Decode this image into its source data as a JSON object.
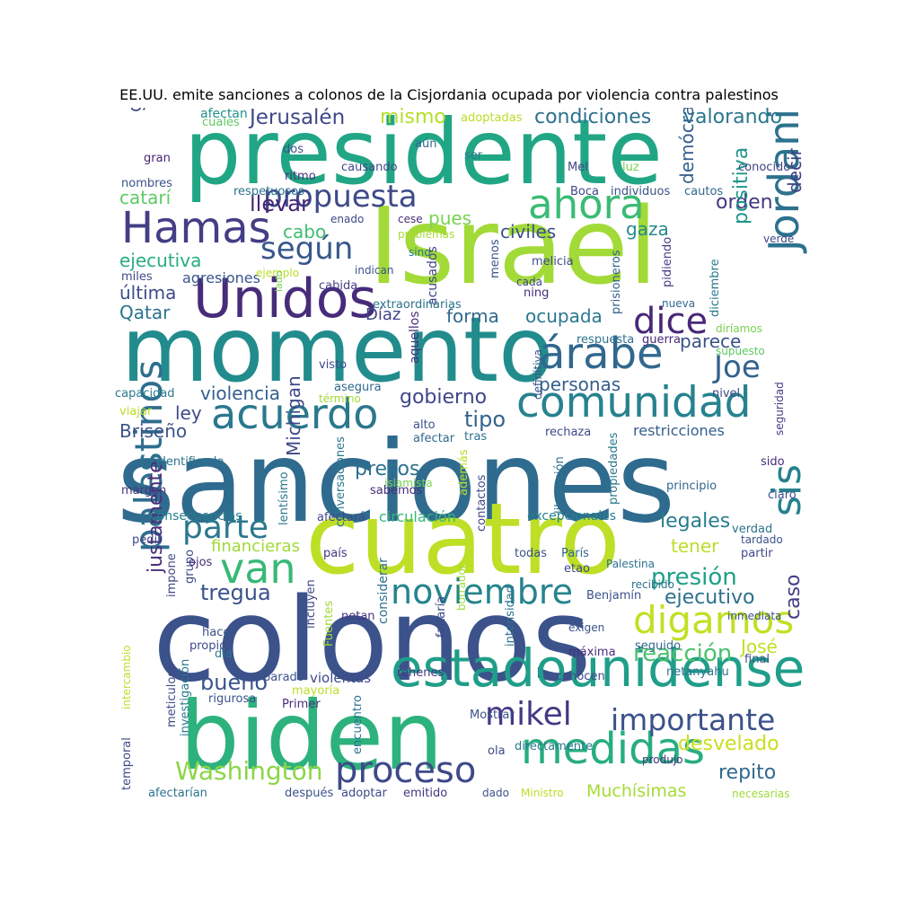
{
  "title": "EE.UU. emite sanciones a colonos de la Cisjordania ocupada por violencia contra palestinos",
  "words": [
    {
      "text": "sanciones",
      "color": "#2f6b8e"
    },
    {
      "text": "colonos",
      "color": "#3b528b"
    },
    {
      "text": "presidente",
      "color": "#21a685"
    },
    {
      "text": "momento",
      "color": "#228c8d"
    },
    {
      "text": "Israel",
      "color": "#a2da37"
    },
    {
      "text": "cuatro",
      "color": "#bddf26"
    },
    {
      "text": "biden",
      "color": "#2db27d"
    },
    {
      "text": "Unidos",
      "color": "#472c7a"
    },
    {
      "text": "Hamas",
      "color": "#433e85"
    },
    {
      "text": "estadounidense",
      "color": "#1f9e89"
    },
    {
      "text": "acuerdo",
      "color": "#2a788e"
    },
    {
      "text": "comunidad",
      "color": "#26828e"
    },
    {
      "text": "medidas",
      "color": "#27ad81"
    },
    {
      "text": "ahora",
      "color": "#3bbb75"
    },
    {
      "text": "árabe",
      "color": "#31688e"
    },
    {
      "text": "propuesta",
      "color": "#3e4a89"
    },
    {
      "text": "Jordania",
      "color": "#2c728e"
    },
    {
      "text": "noviembre",
      "color": "#25848e"
    },
    {
      "text": "digamos",
      "color": "#c2df23"
    },
    {
      "text": "proceso",
      "color": "#3e4989"
    },
    {
      "text": "dice",
      "color": "#482878"
    },
    {
      "text": "según",
      "color": "#38588c"
    },
    {
      "text": "parte",
      "color": "#2a788e"
    },
    {
      "text": "van",
      "color": "#38b977"
    },
    {
      "text": "mikel",
      "color": "#443983"
    },
    {
      "text": "Joe",
      "color": "#33638d"
    },
    {
      "text": "palestinos",
      "color": "#2e6e8e"
    },
    {
      "text": "importante",
      "color": "#3b528b"
    },
    {
      "text": "Washington",
      "color": "#8bd646"
    },
    {
      "text": "sis",
      "color": "#26818e"
    },
    {
      "text": "presión",
      "color": "#1fa088"
    },
    {
      "text": "reacción",
      "color": "#4ac16d"
    },
    {
      "text": "repito",
      "color": "#31688e"
    },
    {
      "text": "desvelado",
      "color": "#c8e020"
    },
    {
      "text": "Muchísimas",
      "color": "#a5db36"
    },
    {
      "text": "ejecutivo",
      "color": "#2d708e"
    },
    {
      "text": "legales",
      "color": "#287d8e"
    },
    {
      "text": "tener",
      "color": "#bade28"
    },
    {
      "text": "tregua",
      "color": "#3b528b"
    },
    {
      "text": "bueno",
      "color": "#3a548c"
    },
    {
      "text": "violencia",
      "color": "#355f8d"
    },
    {
      "text": "gobierno",
      "color": "#3f4788"
    },
    {
      "text": "ley",
      "color": "#3e4a89"
    },
    {
      "text": "tipo",
      "color": "#33638d"
    },
    {
      "text": "personas",
      "color": "#355e8d"
    },
    {
      "text": "forma",
      "color": "#31688e"
    },
    {
      "text": "ocupada",
      "color": "#2a788e"
    },
    {
      "text": "parece",
      "color": "#3b528b"
    },
    {
      "text": "condiciones",
      "color": "#2d708e"
    },
    {
      "text": "valorando",
      "color": "#2a768e"
    },
    {
      "text": "Jerusalén",
      "color": "#3f4889"
    },
    {
      "text": "mismo",
      "color": "#b5de2b"
    },
    {
      "text": "llevar",
      "color": "#482475"
    },
    {
      "text": "pues",
      "color": "#7ad151"
    },
    {
      "text": "cabo",
      "color": "#40bd72"
    },
    {
      "text": "catarí",
      "color": "#5ec962"
    },
    {
      "text": "ejecutiva",
      "color": "#25ac82"
    },
    {
      "text": "última",
      "color": "#3e4c8a"
    },
    {
      "text": "Qatar",
      "color": "#2c728e"
    },
    {
      "text": "civiles",
      "color": "#3c508b"
    },
    {
      "text": "gaza",
      "color": "#238a8d"
    },
    {
      "text": "orden",
      "color": "#453781"
    },
    {
      "text": "positiva",
      "color": "#1f968b"
    },
    {
      "text": "demócrata",
      "color": "#355f8d"
    },
    {
      "text": "decir",
      "color": "#424086"
    },
    {
      "text": "poder",
      "color": "#472d7b"
    },
    {
      "text": "gracias",
      "color": "#3f4788"
    },
    {
      "text": "presos",
      "color": "#2c718e"
    },
    {
      "text": "Michigan",
      "color": "#3f4889"
    },
    {
      "text": "justamente",
      "color": "#4c2c7a"
    },
    {
      "text": "Briseño",
      "color": "#3b528b"
    },
    {
      "text": "caso",
      "color": "#433e85"
    },
    {
      "text": "José",
      "color": "#c2df23"
    },
    {
      "text": "financieras",
      "color": "#a0da39"
    },
    {
      "text": "agresiones",
      "color": "#3a548c"
    },
    {
      "text": "Díaz",
      "color": "#3f4788"
    },
    {
      "text": "circulación",
      "color": "#35b779"
    },
    {
      "text": "restricciones",
      "color": "#355e8d"
    },
    {
      "text": "consecuencias",
      "color": "#277f8e"
    },
    {
      "text": "excepcionales",
      "color": "#26818e"
    },
    {
      "text": "afectan",
      "color": "#21918c"
    },
    {
      "text": "adoptadas",
      "color": "#bade28"
    },
    {
      "text": "dos",
      "color": "#3b528b"
    },
    {
      "text": "aún",
      "color": "#31688e"
    },
    {
      "text": "ser",
      "color": "#2a788e"
    },
    {
      "text": "Mel",
      "color": "#3e4989"
    },
    {
      "text": "luz",
      "color": "#7ad151"
    },
    {
      "text": "conocido",
      "color": "#414487"
    },
    {
      "text": "ritmo",
      "color": "#46337f"
    },
    {
      "text": "causando",
      "color": "#3e4a89"
    },
    {
      "text": "Boca",
      "color": "#3f4788"
    },
    {
      "text": "individuos",
      "color": "#3b528b"
    },
    {
      "text": "cautos",
      "color": "#31688e"
    },
    {
      "text": "respetuosos",
      "color": "#2c728e"
    },
    {
      "text": "enado",
      "color": "#3e4989"
    },
    {
      "text": "cese",
      "color": "#472d7b"
    },
    {
      "text": "gran",
      "color": "#482475"
    },
    {
      "text": "nombres",
      "color": "#3b528b"
    },
    {
      "text": "cuales",
      "color": "#5ec962"
    },
    {
      "text": "problemas",
      "color": "#a8db34"
    },
    {
      "text": "sino",
      "color": "#2a788e"
    },
    {
      "text": "indican",
      "color": "#3b528b"
    },
    {
      "text": "ejemplo",
      "color": "#bade28"
    },
    {
      "text": "miles",
      "color": "#3e4a89"
    },
    {
      "text": "cabida",
      "color": "#433e85"
    },
    {
      "text": "lado",
      "color": "#7ad151"
    },
    {
      "text": "acusados",
      "color": "#3f4788"
    },
    {
      "text": "melicia",
      "color": "#3e4a89"
    },
    {
      "text": "ning",
      "color": "#472d7b"
    },
    {
      "text": "cada",
      "color": "#3f4788"
    },
    {
      "text": "menos",
      "color": "#3b528b"
    },
    {
      "text": "extraordinarias",
      "color": "#2c728e"
    },
    {
      "text": "aquellos",
      "color": "#472d7b"
    },
    {
      "text": "prisioneros",
      "color": "#355e8d"
    },
    {
      "text": "pidiendo",
      "color": "#433e85"
    },
    {
      "text": "diciembre",
      "color": "#2a788e"
    },
    {
      "text": "verde",
      "color": "#3f4788"
    },
    {
      "text": "nueva",
      "color": "#31688e"
    },
    {
      "text": "diríamos",
      "color": "#7ad151"
    },
    {
      "text": "supuesto",
      "color": "#5ec962"
    },
    {
      "text": "respuesta",
      "color": "#2c728e"
    },
    {
      "text": "guerra",
      "color": "#482878"
    },
    {
      "text": "definitiva",
      "color": "#3b528b"
    },
    {
      "text": "visto",
      "color": "#3e4989"
    },
    {
      "text": "asegura",
      "color": "#31688e"
    },
    {
      "text": "capacidad",
      "color": "#2a788e"
    },
    {
      "text": "término",
      "color": "#a0da39"
    },
    {
      "text": "viajar",
      "color": "#bade28"
    },
    {
      "text": "nivel",
      "color": "#3e4a89"
    },
    {
      "text": "seguridad",
      "color": "#433e85"
    },
    {
      "text": "alto",
      "color": "#3b528b"
    },
    {
      "text": "afectar",
      "color": "#31688e"
    },
    {
      "text": "tras",
      "color": "#2c728e"
    },
    {
      "text": "islamista",
      "color": "#7ad151"
    },
    {
      "text": "rechaza",
      "color": "#3e4989"
    },
    {
      "text": "identificado",
      "color": "#2c728e"
    },
    {
      "text": "conversaciones",
      "color": "#2a788e"
    },
    {
      "text": "además",
      "color": "#bade28"
    },
    {
      "text": "contactos",
      "color": "#3e4989"
    },
    {
      "text": "liberación",
      "color": "#2c728e"
    },
    {
      "text": "propiedades",
      "color": "#2a788e"
    },
    {
      "text": "sido",
      "color": "#472d7b"
    },
    {
      "text": "claro",
      "color": "#3b528b"
    },
    {
      "text": "margen",
      "color": "#46337f"
    },
    {
      "text": "lentísimo",
      "color": "#2a788e"
    },
    {
      "text": "sabemos",
      "color": "#472d7b"
    },
    {
      "text": "principio",
      "color": "#31688e"
    },
    {
      "text": "afectará",
      "color": "#3e4989"
    },
    {
      "text": "pedir",
      "color": "#3f4788"
    },
    {
      "text": "verdad",
      "color": "#2c728e"
    },
    {
      "text": "tardado",
      "color": "#3b528b"
    },
    {
      "text": "partir",
      "color": "#3e4a89"
    },
    {
      "text": "país",
      "color": "#46337f"
    },
    {
      "text": "considerar",
      "color": "#2c728e"
    },
    {
      "text": "borrador",
      "color": "#a0da39"
    },
    {
      "text": "todas",
      "color": "#3b528b"
    },
    {
      "text": "París",
      "color": "#31688e"
    },
    {
      "text": "etao",
      "color": "#3e4989"
    },
    {
      "text": "Palestina",
      "color": "#2c728e"
    },
    {
      "text": "Benjamín",
      "color": "#3b528b"
    },
    {
      "text": "grupo",
      "color": "#3e4a89"
    },
    {
      "text": "ojos",
      "color": "#472d7b"
    },
    {
      "text": "impone",
      "color": "#3f4788"
    },
    {
      "text": "recibido",
      "color": "#2c728e"
    },
    {
      "text": "inmediata",
      "color": "#3b528b"
    },
    {
      "text": "incluyen",
      "color": "#3e4989"
    },
    {
      "text": "netan",
      "color": "#46337f"
    },
    {
      "text": "Fuentes",
      "color": "#a0da39"
    },
    {
      "text": "faltaría",
      "color": "#3e4a89"
    },
    {
      "text": "intensidad",
      "color": "#2c728e"
    },
    {
      "text": "exigen",
      "color": "#3b528b"
    },
    {
      "text": "hace",
      "color": "#3b528b"
    },
    {
      "text": "propio",
      "color": "#3e4989"
    },
    {
      "text": "día",
      "color": "#2a788e"
    },
    {
      "text": "máxima",
      "color": "#472d7b"
    },
    {
      "text": "seguido",
      "color": "#31688e"
    },
    {
      "text": "final",
      "color": "#3b528b"
    },
    {
      "text": "intercambio",
      "color": "#bade28"
    },
    {
      "text": "meticuloso",
      "color": "#3e4a89"
    },
    {
      "text": "investigación",
      "color": "#2a788e"
    },
    {
      "text": "parado",
      "color": "#3b528b"
    },
    {
      "text": "violentas",
      "color": "#3e4989"
    },
    {
      "text": "rehenes",
      "color": "#46337f"
    },
    {
      "text": "conocen",
      "color": "#3e4a89"
    },
    {
      "text": "netanyahu",
      "color": "#2c728e"
    },
    {
      "text": "rigurosa",
      "color": "#3b528b"
    },
    {
      "text": "mayoría",
      "color": "#bade28"
    },
    {
      "text": "Primer",
      "color": "#472d7b"
    },
    {
      "text": "encuentro",
      "color": "#2c728e"
    },
    {
      "text": "Mostrar",
      "color": "#3b528b"
    },
    {
      "text": "ola",
      "color": "#3e4989"
    },
    {
      "text": "directamente",
      "color": "#2a788e"
    },
    {
      "text": "produjo",
      "color": "#46337f"
    },
    {
      "text": "temporal",
      "color": "#3e4a89"
    },
    {
      "text": "afectarían",
      "color": "#2c728e"
    },
    {
      "text": "después",
      "color": "#3b528b"
    },
    {
      "text": "adoptar",
      "color": "#3e4989"
    },
    {
      "text": "emitido",
      "color": "#46337f"
    },
    {
      "text": "dado",
      "color": "#3b528b"
    },
    {
      "text": "Ministro",
      "color": "#bade28"
    },
    {
      "text": "necesarias",
      "color": "#a0da39"
    }
  ]
}
